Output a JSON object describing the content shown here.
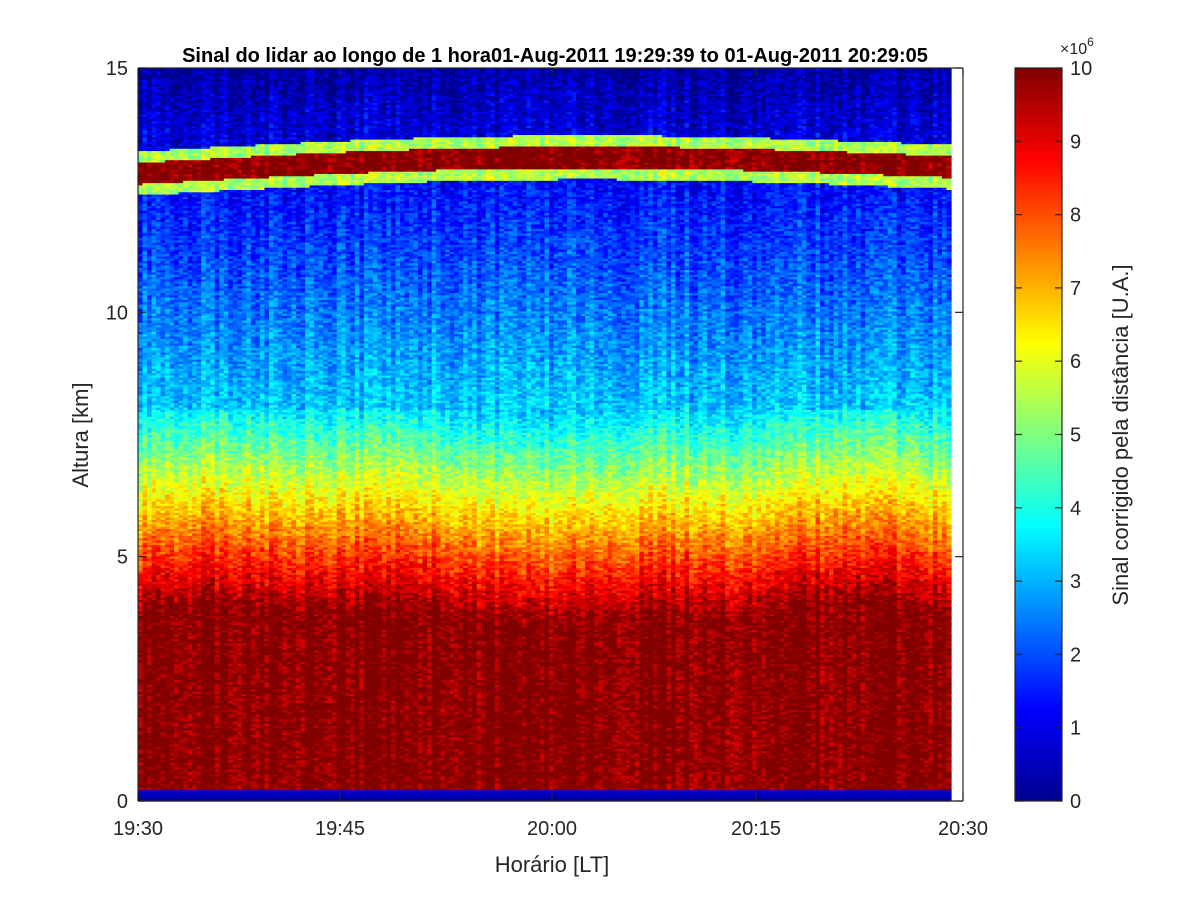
{
  "chart_data": {
    "type": "heatmap",
    "title": "Sinal do lidar ao longo de 1 hora01-Aug-2011 19:29:39 to 01-Aug-2011 20:29:05",
    "xlabel": "Horário [LT]",
    "ylabel": "Altura [km]",
    "colorbar_label": "Sinal corrigido pela distância [U.A.]",
    "colorbar_exponent": "×10",
    "colorbar_exponent_power": "6",
    "colormap": "jet",
    "xlim": [
      "19:29:39",
      "20:30:00"
    ],
    "ylim": [
      0,
      15
    ],
    "clim": [
      0,
      10
    ],
    "x_ticks": [
      "19:30",
      "19:45",
      "20:00",
      "20:15",
      "20:30"
    ],
    "y_ticks": [
      "0",
      "5",
      "10",
      "15"
    ],
    "colorbar_ticks": [
      "0",
      "1",
      "2",
      "3",
      "4",
      "5",
      "6",
      "7",
      "8",
      "9",
      "10"
    ],
    "grid": false,
    "features": [
      {
        "name": "saturated near-surface layer",
        "altitude_km": [
          0.4,
          3.9
        ],
        "value": 10
      },
      {
        "name": "cirrus layer",
        "altitude_km": [
          12.5,
          13.2
        ],
        "value": 10
      },
      {
        "name": "aerosol gradient",
        "altitude_km": [
          3.9,
          8.0
        ],
        "value_range": [
          10,
          3
        ]
      },
      {
        "name": "clean upper troposphere",
        "altitude_km": [
          8.0,
          15.0
        ],
        "value_range": [
          3,
          0.5
        ]
      }
    ]
  }
}
